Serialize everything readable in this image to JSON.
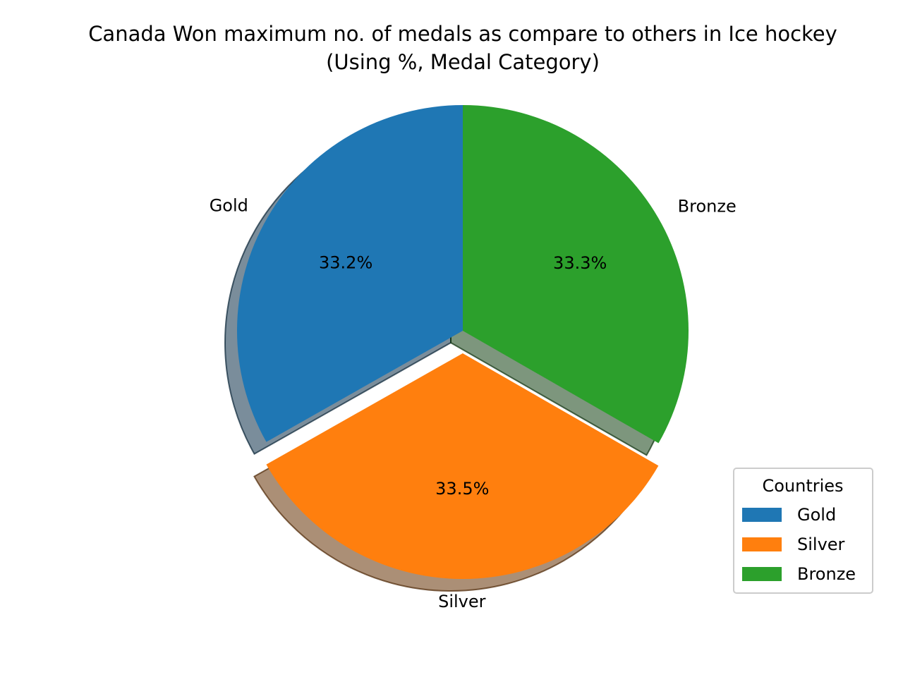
{
  "chart_data": {
    "type": "pie",
    "title": "Canada Won maximum no. of medals as compare to others in Ice hockey",
    "subtitle": "(Using %, Medal Category)",
    "slices": [
      {
        "label": "Gold",
        "value": 33.2,
        "pct_label": "33.2%",
        "color": "#1f77b4",
        "explode": false
      },
      {
        "label": "Silver",
        "value": 33.5,
        "pct_label": "33.5%",
        "color": "#ff7f0e",
        "explode": true
      },
      {
        "label": "Bronze",
        "value": 33.3,
        "pct_label": "33.3%",
        "color": "#2ca02c",
        "explode": false
      }
    ],
    "start_angle_deg": 90,
    "direction": "counterclockwise",
    "shadow": true,
    "legend": {
      "title": "Countries",
      "placement": "lower-right",
      "entries": [
        "Gold",
        "Silver",
        "Bronze"
      ]
    }
  }
}
